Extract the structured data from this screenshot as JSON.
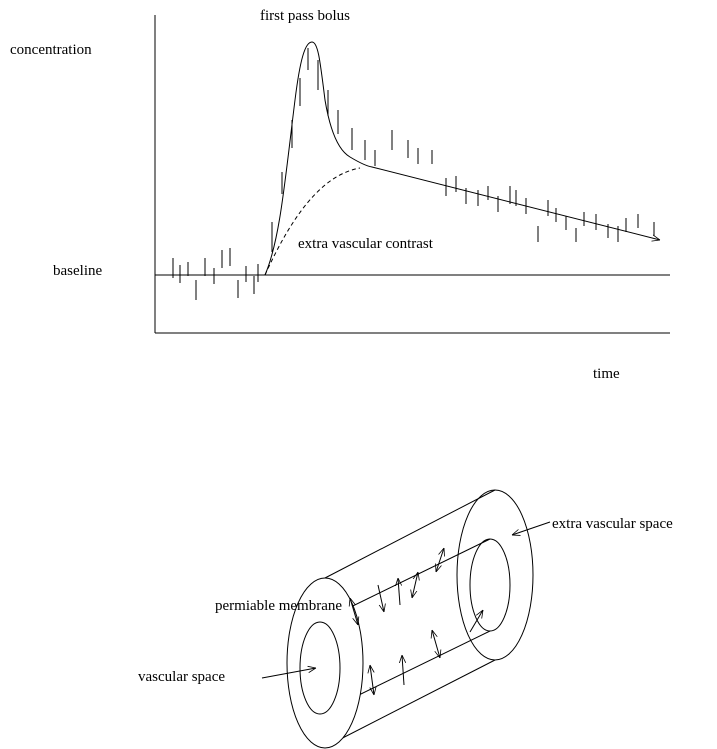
{
  "graph": {
    "y_label": "concentration",
    "peak_label": "first pass bolus",
    "baseline_label": "baseline",
    "curve_label": "extra vascular contrast",
    "x_label": "time"
  },
  "vessel": {
    "outer_label": "extra vascular space",
    "membrane_label": "permiable membrane",
    "inner_label": "vascular space"
  }
}
